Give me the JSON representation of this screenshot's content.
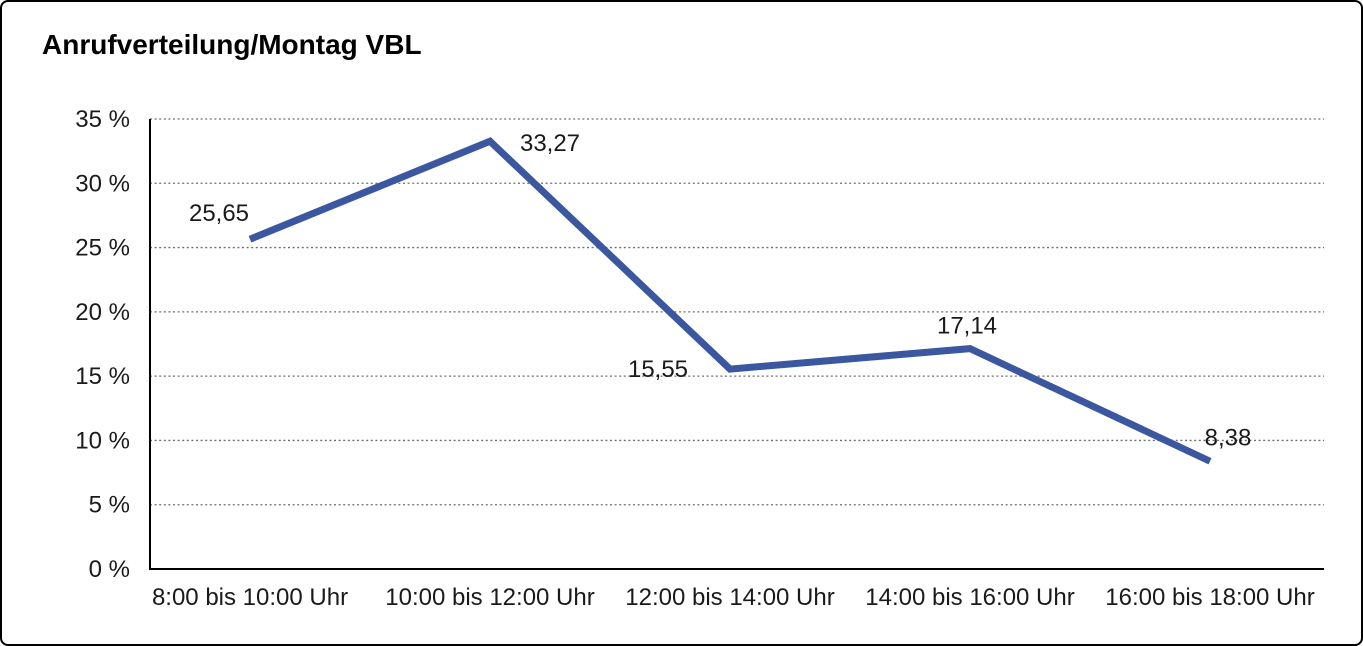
{
  "window": {
    "title": "Anrufverteilung/Montag VBL"
  },
  "chart_data": {
    "type": "line",
    "title": "Anrufverteilung/Montag VBL",
    "categories": [
      "8:00 bis 10:00 Uhr",
      "10:00 bis 12:00 Uhr",
      "12:00 bis 14:00 Uhr",
      "14:00 bis 16:00 Uhr",
      "16:00 bis 18:00 Uhr"
    ],
    "values": [
      25.65,
      33.27,
      15.55,
      17.14,
      8.38
    ],
    "point_labels": [
      "25,65",
      "33,27",
      "15,55",
      "17,14",
      "8,38"
    ],
    "xlabel": "",
    "ylabel": "",
    "ylim": [
      0,
      35
    ],
    "ytick_step": 5,
    "ytick_labels": [
      "0 %",
      "5 %",
      "10 %",
      "15 %",
      "20 %",
      "25 %",
      "30 %",
      "35 %"
    ],
    "grid": "horizontal-dotted",
    "legend": "none",
    "line_color": "#3A57A0",
    "axis_color": "#000000",
    "grid_color": "#6e6e6e",
    "label_color": "#1a1a1a"
  }
}
